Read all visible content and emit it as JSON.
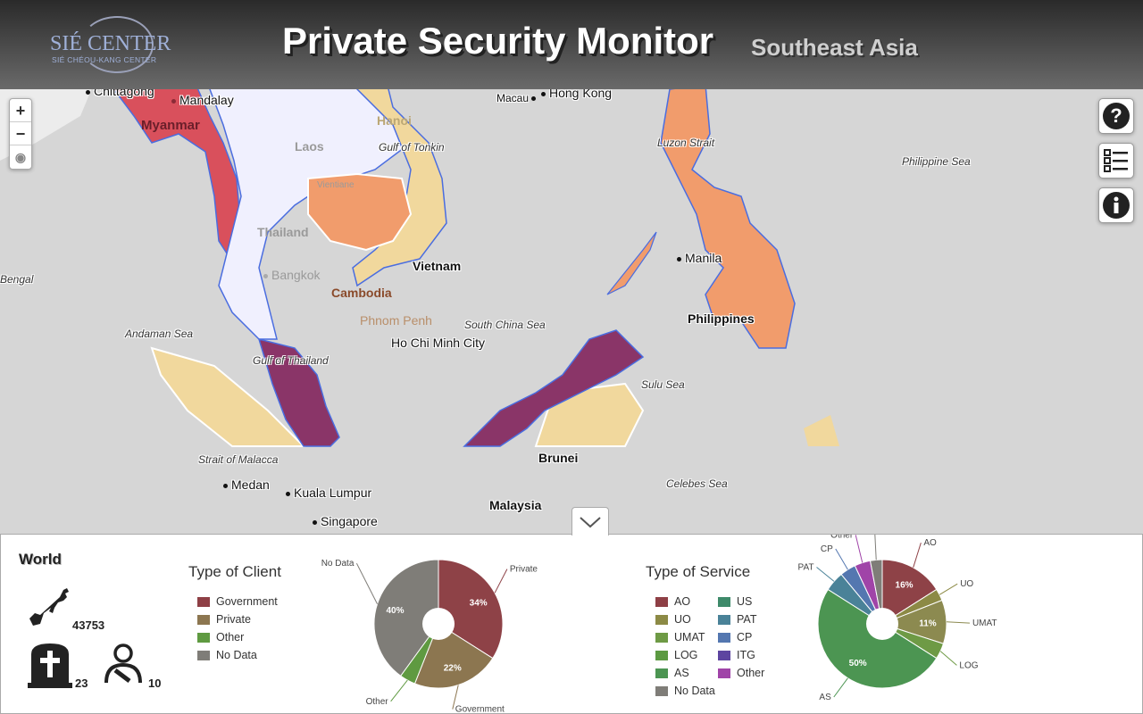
{
  "header": {
    "logo_main": "SIÉ CENTER",
    "logo_sub": "SIÉ CHÉOU-KANG CENTER",
    "title": "Private Security Monitor",
    "subtitle": "Southeast Asia"
  },
  "map": {
    "zoom_in": "+",
    "zoom_out": "−",
    "labels": {
      "chittagong": "Chittagong",
      "mandalay": "Mandalay",
      "myanmar": "Myanmar",
      "macau": "Macau",
      "hongkong": "Hong Kong",
      "hanoi": "Hanoi",
      "gulf_tonkin": "Gulf of Tonkin",
      "laos": "Laos",
      "vientiane": "Vientiane",
      "luzon": "Luzon Strait",
      "phil_sea": "Philippine Sea",
      "thailand": "Thailand",
      "bengal": "Bengal",
      "vietnam": "Vietnam",
      "bangkok": "Bangkok",
      "cambodia": "Cambodia",
      "manila": "Manila",
      "phnom": "Phnom Penh",
      "scs": "South China Sea",
      "philippines": "Philippines",
      "hcm": "Ho Chi Minh City",
      "andaman": "Andaman Sea",
      "gulf_thailand": "Gulf of Thailand",
      "sulu": "Sulu Sea",
      "brunei": "Brunei",
      "malacca": "Strait of Malacca",
      "medan": "Medan",
      "kl": "Kuala Lumpur",
      "celebes": "Celebes Sea",
      "malaysia": "Malaysia",
      "singapore": "Singapore"
    }
  },
  "panel": {
    "region": "World",
    "weapons_count": "43753",
    "deaths_count": "23",
    "injured_count": "10",
    "client": {
      "title": "Type of Client",
      "legend": [
        {
          "label": "Government",
          "color": "#8e3f45"
        },
        {
          "label": "Private",
          "color": "#8c7650"
        },
        {
          "label": "Other",
          "color": "#5f9a41"
        },
        {
          "label": "No Data",
          "color": "#7f7d78"
        }
      ]
    },
    "service": {
      "title": "Type of Service",
      "legend": [
        {
          "label": "AO",
          "color": "#8e3f45"
        },
        {
          "label": "UO",
          "color": "#8c8a45"
        },
        {
          "label": "UMAT",
          "color": "#6e9a45"
        },
        {
          "label": "LOG",
          "color": "#5c9a42"
        },
        {
          "label": "AS",
          "color": "#4c9552"
        },
        {
          "label": "No Data",
          "color": "#7f7d78"
        },
        {
          "label": "US",
          "color": "#3e8a6a"
        },
        {
          "label": "PAT",
          "color": "#4a8298"
        },
        {
          "label": "CP",
          "color": "#5477b0"
        },
        {
          "label": "ITG",
          "color": "#5d45a0"
        },
        {
          "label": "Other",
          "color": "#a044a8"
        }
      ]
    }
  },
  "chart_data": [
    {
      "type": "pie",
      "title": "Type of Client",
      "labels": [
        "Private",
        "Government",
        "Other",
        "No Data"
      ],
      "values": [
        34,
        22,
        4,
        40
      ],
      "colors": [
        "#8e4247",
        "#8c7650",
        "#5f9a41",
        "#7f7d78"
      ],
      "pct_labels": [
        "34%",
        "22%",
        "",
        "40%"
      ]
    },
    {
      "type": "pie",
      "title": "Type of Service",
      "labels": [
        "AO",
        "UO",
        "UMAT",
        "LOG",
        "AS",
        "PAT",
        "CP",
        "Other",
        "No Data"
      ],
      "values": [
        16,
        3,
        11,
        4,
        50,
        5,
        4,
        4,
        3
      ],
      "colors": [
        "#8e4247",
        "#8c8a45",
        "#8c8a50",
        "#6e9a45",
        "#4c9552",
        "#4a8298",
        "#5477b0",
        "#a044a8",
        "#7f7d78"
      ],
      "pct_labels": [
        "16%",
        "",
        "11%",
        "",
        "50%",
        "",
        "",
        "",
        ""
      ]
    }
  ]
}
